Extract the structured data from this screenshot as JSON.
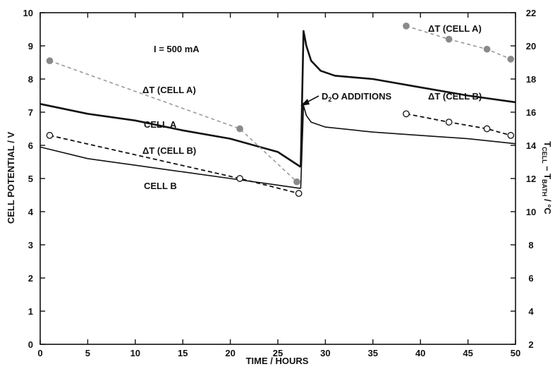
{
  "chart_data": {
    "type": "line",
    "xlabel": "TIME / HOURS",
    "ylabel_left": "CELL POTENTIAL / V",
    "ylabel_right": {
      "base": "T",
      "sub1": "CELL",
      "mid": " – T",
      "sub2": "BATH",
      "unit": " / °C"
    },
    "xlim": [
      0,
      50
    ],
    "ylim_left": [
      0,
      10
    ],
    "ylim_right": [
      2,
      22
    ],
    "x_ticks": [
      0,
      5,
      10,
      15,
      20,
      25,
      30,
      35,
      40,
      45,
      50
    ],
    "y_left_ticks": [
      0,
      1,
      2,
      3,
      4,
      5,
      6,
      7,
      8,
      9,
      10
    ],
    "y_right_ticks": [
      2,
      4,
      6,
      8,
      10,
      12,
      14,
      16,
      18,
      20,
      22
    ],
    "series": [
      {
        "name": "CELL A",
        "axis": "left",
        "style": "thick-solid",
        "segments": [
          [
            [
              0,
              7.25
            ],
            [
              5,
              6.95
            ],
            [
              10,
              6.75
            ],
            [
              15,
              6.45
            ],
            [
              20,
              6.2
            ],
            [
              25,
              5.8
            ],
            [
              27.4,
              5.35
            ]
          ],
          [
            [
              27.4,
              5.35
            ],
            [
              27.7,
              9.45
            ],
            [
              28.0,
              9.0
            ],
            [
              28.5,
              8.55
            ],
            [
              29.5,
              8.25
            ],
            [
              31,
              8.1
            ],
            [
              35,
              8.0
            ],
            [
              40,
              7.75
            ],
            [
              45,
              7.5
            ],
            [
              50,
              7.3
            ]
          ]
        ]
      },
      {
        "name": "CELL B",
        "axis": "left",
        "style": "thin-solid",
        "segments": [
          [
            [
              0,
              5.95
            ],
            [
              5,
              5.6
            ],
            [
              10,
              5.4
            ],
            [
              15,
              5.2
            ],
            [
              20,
              5.0
            ],
            [
              25,
              4.8
            ],
            [
              27.4,
              4.7
            ]
          ],
          [
            [
              27.4,
              4.7
            ],
            [
              27.7,
              7.2
            ],
            [
              28.0,
              6.9
            ],
            [
              28.5,
              6.7
            ],
            [
              30,
              6.55
            ],
            [
              35,
              6.4
            ],
            [
              40,
              6.3
            ],
            [
              45,
              6.2
            ],
            [
              50,
              6.05
            ]
          ]
        ]
      },
      {
        "name": "ΔT (CELL A)",
        "axis": "right",
        "style": "gray-dashed-filled",
        "segments": [
          [
            [
              1,
              19.1
            ],
            [
              21,
              15.0
            ],
            [
              27,
              11.8
            ]
          ],
          [
            [
              38.5,
              21.2
            ],
            [
              43,
              20.4
            ],
            [
              47,
              19.8
            ],
            [
              49.5,
              19.2
            ]
          ]
        ]
      },
      {
        "name": "ΔT (CELL B)",
        "axis": "right",
        "style": "black-dashed-open",
        "segments": [
          [
            [
              1,
              14.6
            ],
            [
              21,
              12.0
            ],
            [
              27.2,
              11.1
            ]
          ],
          [
            [
              38.5,
              15.9
            ],
            [
              43,
              15.4
            ],
            [
              47,
              15.0
            ],
            [
              49.5,
              14.6
            ]
          ]
        ]
      }
    ],
    "annotations": {
      "current": "I = 500 mA",
      "cell_a": "CELL A",
      "cell_b": "CELL B",
      "dt_a_left": "ΔT (CELL A)",
      "dt_b_left": "ΔT (CELL B)",
      "dt_a_right": "ΔT (CELL A)",
      "dt_b_right": "ΔT (CELL B)",
      "d2o": {
        "pre": "D",
        "sub": "2",
        "post": "O  ADDITIONS"
      }
    }
  }
}
